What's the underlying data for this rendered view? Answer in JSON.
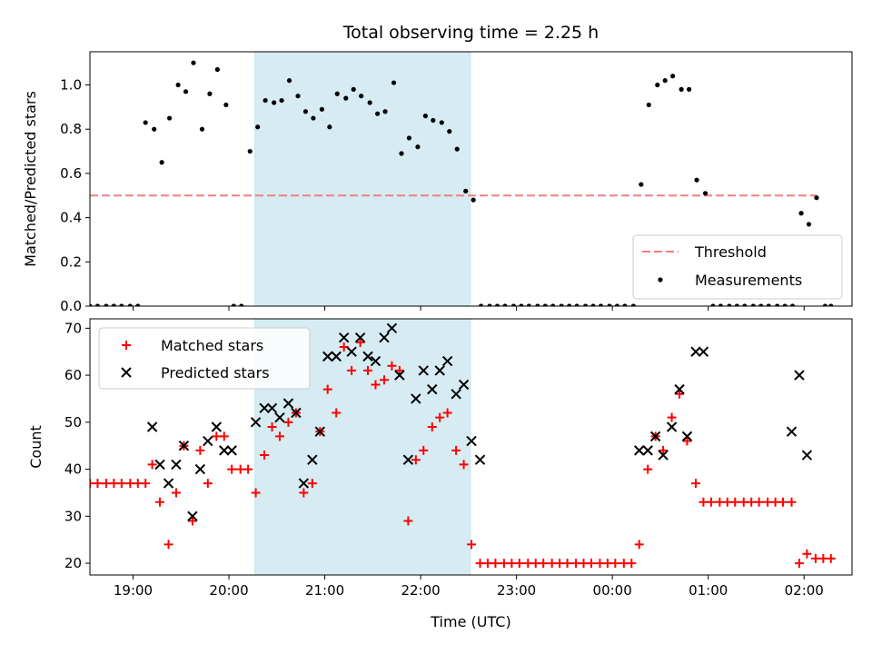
{
  "chart_data": [
    {
      "type": "scatter",
      "title": "Total observing time = 2.25 h",
      "ylabel": "Matched/Predicted stars",
      "xlabel": "",
      "xlim": [
        18.55,
        26.5
      ],
      "ylim": [
        0,
        1.15
      ],
      "yticks": [
        0.0,
        0.2,
        0.4,
        0.6,
        0.8,
        1.0
      ],
      "yticklabels": [
        "0.0",
        "0.2",
        "0.4",
        "0.6",
        "0.8",
        "1.0"
      ],
      "observing_window": [
        20.27,
        22.52
      ],
      "legend_position": "lower-right",
      "threshold": {
        "name": "Threshold",
        "value": 0.5,
        "x_range": [
          18.55,
          26.13
        ],
        "color": "#f08080"
      },
      "series": [
        {
          "name": "Measurements",
          "color": "#000000",
          "marker": "dot",
          "x": [
            18.55,
            18.63,
            18.72,
            18.8,
            18.88,
            18.97,
            19.05,
            19.13,
            19.22,
            19.3,
            19.38,
            19.47,
            19.55,
            19.63,
            19.72,
            19.8,
            19.88,
            19.97,
            20.05,
            20.13,
            20.22,
            20.3,
            20.38,
            20.47,
            20.55,
            20.63,
            20.72,
            20.8,
            20.88,
            20.97,
            21.05,
            21.13,
            21.22,
            21.3,
            21.38,
            21.47,
            21.55,
            21.63,
            21.72,
            21.8,
            21.88,
            21.97,
            22.05,
            22.13,
            22.22,
            22.3,
            22.38,
            22.47,
            22.55,
            22.63,
            22.72,
            22.8,
            22.88,
            22.97,
            23.05,
            23.13,
            23.22,
            23.3,
            23.38,
            23.47,
            23.55,
            23.63,
            23.72,
            23.8,
            23.88,
            23.97,
            24.05,
            24.13,
            24.22,
            24.3,
            24.38,
            24.47,
            24.55,
            24.63,
            24.72,
            24.8,
            24.88,
            24.97,
            25.05,
            25.13,
            25.22,
            25.3,
            25.38,
            25.47,
            25.55,
            25.63,
            25.72,
            25.8,
            25.88,
            25.97,
            26.05,
            26.13,
            26.22,
            26.28
          ],
          "y": [
            0,
            0,
            0,
            0,
            0,
            0,
            0,
            0.83,
            0.8,
            0.65,
            0.85,
            1.0,
            0.97,
            1.1,
            0.8,
            0.96,
            1.07,
            0.91,
            0,
            0,
            0.7,
            0.81,
            0.93,
            0.92,
            0.93,
            1.02,
            0.95,
            0.88,
            0.85,
            0.89,
            0.81,
            0.96,
            0.94,
            0.98,
            0.95,
            0.92,
            0.87,
            0.88,
            1.01,
            0.69,
            0.76,
            0.72,
            0.86,
            0.84,
            0.83,
            0.79,
            0.71,
            0.52,
            0.48,
            0,
            0,
            0,
            0,
            0,
            0,
            0,
            0,
            0,
            0,
            0,
            0,
            0,
            0,
            0,
            0,
            0,
            0,
            0,
            0,
            0.55,
            0.91,
            1.0,
            1.02,
            1.04,
            0.98,
            0.98,
            0.57,
            0.51,
            0,
            0,
            0,
            0,
            0,
            0,
            0,
            0,
            0,
            0,
            0,
            0.42,
            0.37,
            0.49,
            0,
            0
          ]
        }
      ]
    },
    {
      "type": "scatter",
      "title": "",
      "xlabel": "Time (UTC)",
      "ylabel": "Count",
      "xlim": [
        18.55,
        26.5
      ],
      "ylim": [
        17.5,
        72
      ],
      "yticks": [
        20,
        30,
        40,
        50,
        60,
        70
      ],
      "yticklabels": [
        "20",
        "30",
        "40",
        "50",
        "60",
        "70"
      ],
      "xticks": [
        19,
        20,
        21,
        22,
        23,
        24,
        25,
        26
      ],
      "xticklabels": [
        "19:00",
        "20:00",
        "21:00",
        "22:00",
        "23:00",
        "00:00",
        "01:00",
        "02:00"
      ],
      "observing_window": [
        20.27,
        22.52
      ],
      "legend_position": "upper-left",
      "series": [
        {
          "name": "Matched stars",
          "color": "#ff0000",
          "marker": "plus",
          "x": [
            18.55,
            18.63,
            18.72,
            18.8,
            18.88,
            18.97,
            19.05,
            19.13,
            19.2,
            19.28,
            19.37,
            19.45,
            19.53,
            19.62,
            19.7,
            19.78,
            19.87,
            19.95,
            20.03,
            20.12,
            20.2,
            20.28,
            20.37,
            20.45,
            20.53,
            20.62,
            20.7,
            20.78,
            20.87,
            20.95,
            21.03,
            21.12,
            21.2,
            21.28,
            21.37,
            21.45,
            21.53,
            21.62,
            21.7,
            21.78,
            21.87,
            21.95,
            22.03,
            22.12,
            22.2,
            22.28,
            22.37,
            22.45,
            22.53,
            22.62,
            22.7,
            22.78,
            22.87,
            22.95,
            23.03,
            23.12,
            23.2,
            23.28,
            23.37,
            23.45,
            23.53,
            23.62,
            23.7,
            23.78,
            23.87,
            23.95,
            24.03,
            24.12,
            24.2,
            24.28,
            24.37,
            24.45,
            24.53,
            24.62,
            24.7,
            24.78,
            24.87,
            24.95,
            25.03,
            25.12,
            25.2,
            25.28,
            25.37,
            25.45,
            25.53,
            25.62,
            25.7,
            25.78,
            25.87,
            25.95,
            26.03,
            26.12,
            26.2,
            26.28
          ],
          "y": [
            37,
            37,
            37,
            37,
            37,
            37,
            37,
            37,
            41,
            33,
            24,
            35,
            45,
            29,
            44,
            37,
            47,
            47,
            40,
            40,
            40,
            35,
            43,
            49,
            47,
            50,
            52,
            35,
            37,
            48,
            57,
            52,
            66,
            61,
            67,
            61,
            58,
            59,
            62,
            61,
            29,
            42,
            44,
            49,
            51,
            52,
            44,
            41,
            24,
            20,
            20,
            20,
            20,
            20,
            20,
            20,
            20,
            20,
            20,
            20,
            20,
            20,
            20,
            20,
            20,
            20,
            20,
            20,
            20,
            24,
            40,
            47,
            44,
            51,
            56,
            46,
            37,
            33,
            33,
            33,
            33,
            33,
            33,
            33,
            33,
            33,
            33,
            33,
            33,
            20,
            22,
            21,
            21,
            21
          ]
        },
        {
          "name": "Predicted stars",
          "color": "#000000",
          "marker": "x",
          "x": [
            19.2,
            19.28,
            19.37,
            19.45,
            19.53,
            19.62,
            19.7,
            19.78,
            19.87,
            19.95,
            20.03,
            20.28,
            20.37,
            20.45,
            20.53,
            20.62,
            20.7,
            20.78,
            20.87,
            20.95,
            21.03,
            21.12,
            21.2,
            21.28,
            21.37,
            21.45,
            21.53,
            21.62,
            21.7,
            21.78,
            21.87,
            21.95,
            22.03,
            22.12,
            22.2,
            22.28,
            22.37,
            22.45,
            22.53,
            22.62,
            24.28,
            24.37,
            24.45,
            24.53,
            24.62,
            24.7,
            24.78,
            24.87,
            24.95,
            25.87,
            25.95,
            26.03
          ],
          "y": [
            49,
            41,
            37,
            41,
            45,
            30,
            40,
            46,
            49,
            44,
            44,
            50,
            53,
            53,
            51,
            54,
            52,
            37,
            42,
            48,
            64,
            64,
            68,
            65,
            68,
            64,
            63,
            68,
            70,
            60,
            42,
            55,
            61,
            57,
            61,
            63,
            56,
            58,
            46,
            42,
            44,
            44,
            47,
            43,
            49,
            57,
            47,
            65,
            65,
            48,
            60,
            43
          ]
        }
      ]
    }
  ]
}
